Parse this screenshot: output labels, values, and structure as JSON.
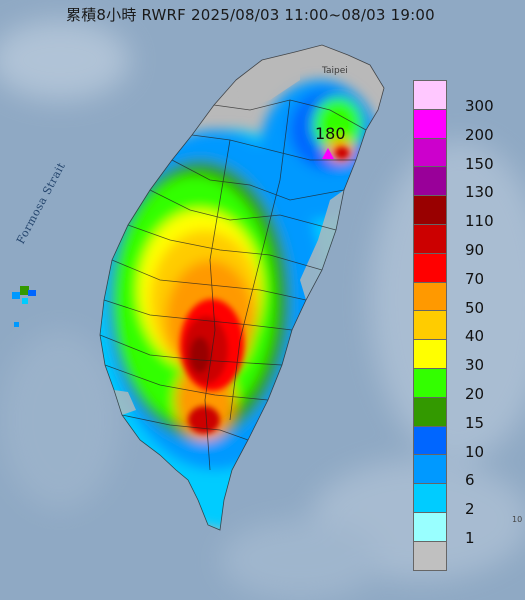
{
  "title": "累積8小時 RWRF 2025/08/03 11:00~08/03 19:00",
  "strait_label": "Formosa Strait",
  "city_label": "Taipei",
  "max_value": "180",
  "corner_label": "10",
  "legend": {
    "levels": [
      {
        "label": "300",
        "color": "#ffc8ff"
      },
      {
        "label": "200",
        "color": "#ff00ff"
      },
      {
        "label": "150",
        "color": "#cc00cc"
      },
      {
        "label": "130",
        "color": "#990099"
      },
      {
        "label": "110",
        "color": "#990000"
      },
      {
        "label": "90",
        "color": "#cc0000"
      },
      {
        "label": "70",
        "color": "#ff0000"
      },
      {
        "label": "50",
        "color": "#ff9900"
      },
      {
        "label": "40",
        "color": "#ffcc00"
      },
      {
        "label": "30",
        "color": "#ffff00"
      },
      {
        "label": "20",
        "color": "#33ff00"
      },
      {
        "label": "15",
        "color": "#339900"
      },
      {
        "label": "10",
        "color": "#0066ff"
      },
      {
        "label": "6",
        "color": "#0099ff"
      },
      {
        "label": "2",
        "color": "#00ccff"
      },
      {
        "label": "1",
        "color": "#99ffff"
      },
      {
        "label": "",
        "color": "#c0c0c0"
      }
    ]
  },
  "colors": {
    "sea": "#8fa9c4",
    "land_base": "#b9b9b9"
  }
}
